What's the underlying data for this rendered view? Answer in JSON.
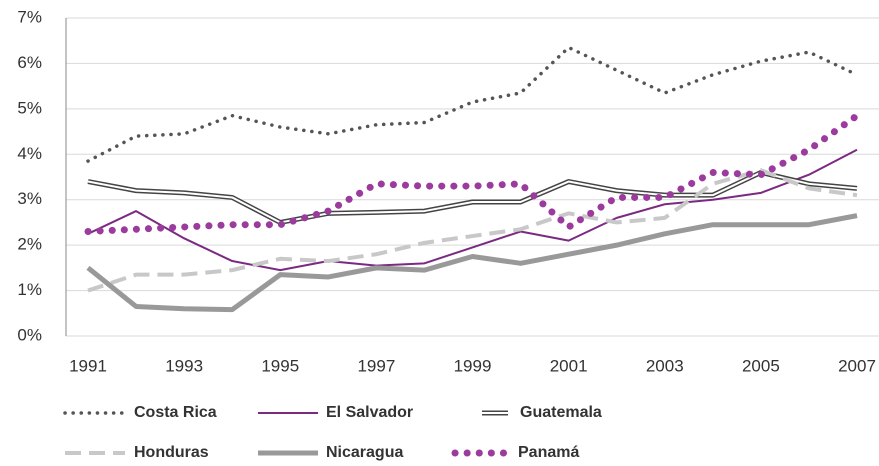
{
  "chart_data": {
    "type": "line",
    "x": [
      1991,
      1992,
      1993,
      1994,
      1995,
      1996,
      1997,
      1998,
      1999,
      2000,
      2001,
      2002,
      2003,
      2004,
      2005,
      2006,
      2007
    ],
    "xlim": [
      1991,
      2007
    ],
    "xticks": [
      1991,
      1993,
      1995,
      1997,
      1999,
      2001,
      2003,
      2005,
      2007
    ],
    "ylim": [
      0,
      7
    ],
    "yticks": [
      {
        "value": 0,
        "label": "0%"
      },
      {
        "value": 1,
        "label": "1%"
      },
      {
        "value": 2,
        "label": "2%"
      },
      {
        "value": 3,
        "label": "3%"
      },
      {
        "value": 4,
        "label": "4%"
      },
      {
        "value": 5,
        "label": "5%"
      },
      {
        "value": 6,
        "label": "6%"
      },
      {
        "value": 7,
        "label": "7%"
      }
    ],
    "grid": true,
    "legend": "bottom",
    "series": [
      {
        "name": "Costa Rica",
        "color": "#555555",
        "style": "dotted",
        "values": [
          3.85,
          4.4,
          4.45,
          4.85,
          4.6,
          4.45,
          4.65,
          4.7,
          5.15,
          5.35,
          6.35,
          5.85,
          5.35,
          5.75,
          6.05,
          6.25,
          5.75
        ]
      },
      {
        "name": "El Salvador",
        "color": "#7b2a82",
        "style": "solid",
        "values": [
          2.25,
          2.75,
          2.15,
          1.65,
          1.45,
          1.65,
          1.55,
          1.6,
          1.95,
          2.3,
          2.1,
          2.6,
          2.9,
          3.0,
          3.15,
          3.55,
          4.1
        ]
      },
      {
        "name": "Guatemala",
        "color": "#444444",
        "style": "double",
        "values": [
          3.4,
          3.2,
          3.15,
          3.05,
          2.5,
          2.7,
          2.72,
          2.75,
          2.95,
          2.95,
          3.4,
          3.2,
          3.1,
          3.1,
          3.6,
          3.35,
          3.25
        ]
      },
      {
        "name": "Honduras",
        "color": "#c8c8c8",
        "style": "dashed",
        "values": [
          1.0,
          1.35,
          1.35,
          1.45,
          1.7,
          1.65,
          1.8,
          2.05,
          2.2,
          2.35,
          2.7,
          2.5,
          2.6,
          3.35,
          3.65,
          3.25,
          3.1
        ]
      },
      {
        "name": "Nicaragua",
        "color": "#999999",
        "style": "thick",
        "values": [
          1.5,
          0.65,
          0.6,
          0.58,
          1.35,
          1.3,
          1.5,
          1.45,
          1.75,
          1.6,
          1.8,
          2.0,
          2.25,
          2.45,
          2.45,
          2.45,
          2.65
        ]
      },
      {
        "name": "Panamá",
        "color": "#9b3b9e",
        "style": "large-dots",
        "values": [
          2.3,
          2.35,
          2.4,
          2.45,
          2.45,
          2.75,
          3.35,
          3.3,
          3.3,
          3.35,
          2.4,
          3.05,
          3.05,
          3.6,
          3.55,
          4.1,
          4.85
        ]
      }
    ]
  }
}
